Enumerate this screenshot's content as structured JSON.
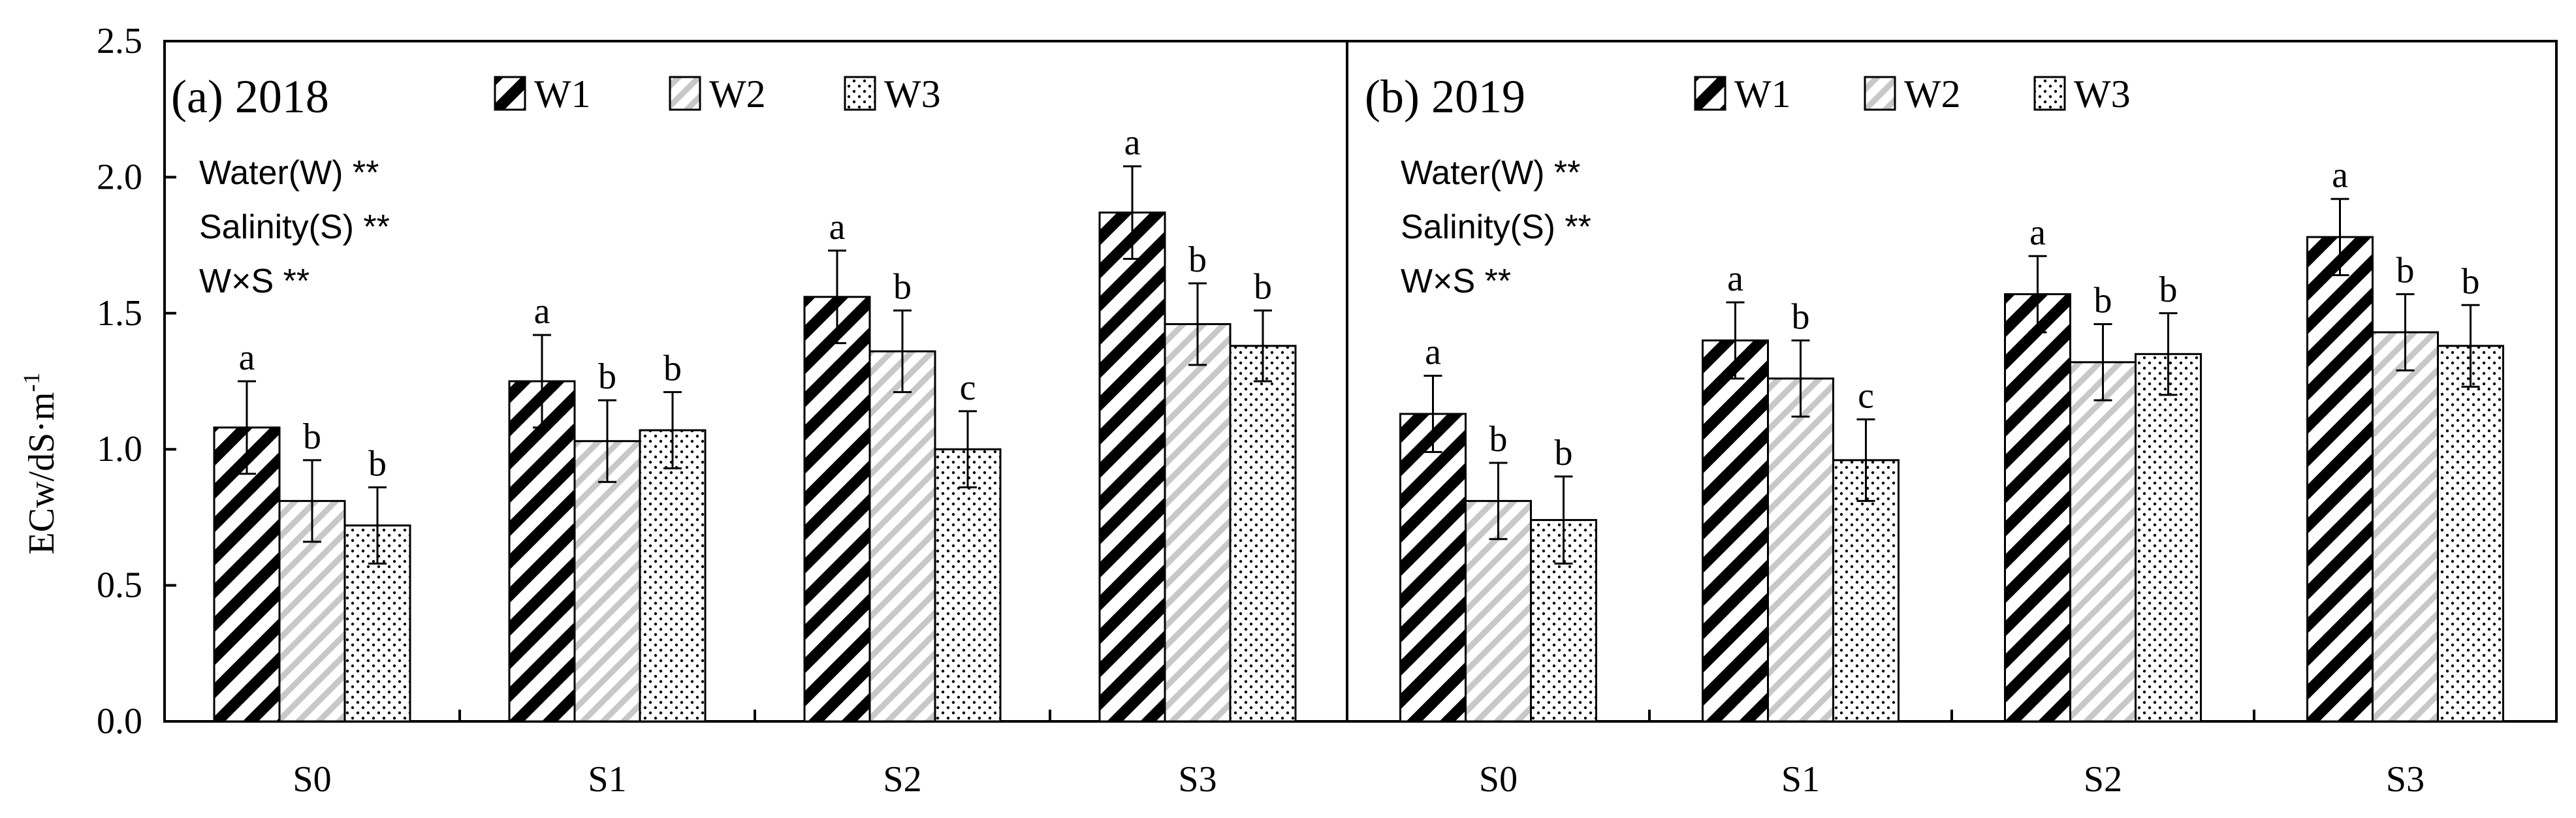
{
  "chart_data": [
    {
      "type": "bar",
      "title": "(a) 2018",
      "ylabel": "ECw/dS·m",
      "ylabel_superscript": "-1",
      "ylim": [
        0,
        2.5
      ],
      "yticks": [
        "0.0",
        "0.5",
        "1.0",
        "1.5",
        "2.0",
        "2.5"
      ],
      "categories": [
        "S0",
        "S1",
        "S2",
        "S3"
      ],
      "legend_position": "top",
      "annotations": [
        "Water(W) **",
        "Salinity(S) **",
        "W×S **"
      ],
      "series": [
        {
          "name": "W1",
          "pattern": "diagonal-heavy",
          "values": [
            1.08,
            1.25,
            1.56,
            1.87
          ],
          "errors": [
            0.17,
            0.17,
            0.17,
            0.17
          ],
          "letters": [
            "a",
            "a",
            "a",
            "a"
          ]
        },
        {
          "name": "W2",
          "pattern": "diagonal-light",
          "values": [
            0.81,
            1.03,
            1.36,
            1.46
          ],
          "errors": [
            0.15,
            0.15,
            0.15,
            0.15
          ],
          "letters": [
            "b",
            "b",
            "b",
            "b"
          ]
        },
        {
          "name": "W3",
          "pattern": "dots",
          "values": [
            0.72,
            1.07,
            1.0,
            1.38
          ],
          "errors": [
            0.14,
            0.14,
            0.14,
            0.13
          ],
          "letters": [
            "b",
            "b",
            "c",
            "b"
          ]
        }
      ]
    },
    {
      "type": "bar",
      "title": "(b) 2019",
      "ylim": [
        0,
        2.5
      ],
      "categories": [
        "S0",
        "S1",
        "S2",
        "S3"
      ],
      "legend_position": "top",
      "annotations": [
        "Water(W) **",
        "Salinity(S) **",
        "W×S **"
      ],
      "series": [
        {
          "name": "W1",
          "pattern": "diagonal-heavy",
          "values": [
            1.13,
            1.4,
            1.57,
            1.78
          ],
          "errors": [
            0.14,
            0.14,
            0.14,
            0.14
          ],
          "letters": [
            "a",
            "a",
            "a",
            "a"
          ]
        },
        {
          "name": "W2",
          "pattern": "diagonal-light",
          "values": [
            0.81,
            1.26,
            1.32,
            1.43
          ],
          "errors": [
            0.14,
            0.14,
            0.14,
            0.14
          ],
          "letters": [
            "b",
            "b",
            "b",
            "b"
          ]
        },
        {
          "name": "W3",
          "pattern": "dots",
          "values": [
            0.74,
            0.96,
            1.35,
            1.38
          ],
          "errors": [
            0.16,
            0.15,
            0.15,
            0.15
          ],
          "letters": [
            "b",
            "c",
            "b",
            "b"
          ]
        }
      ]
    }
  ]
}
